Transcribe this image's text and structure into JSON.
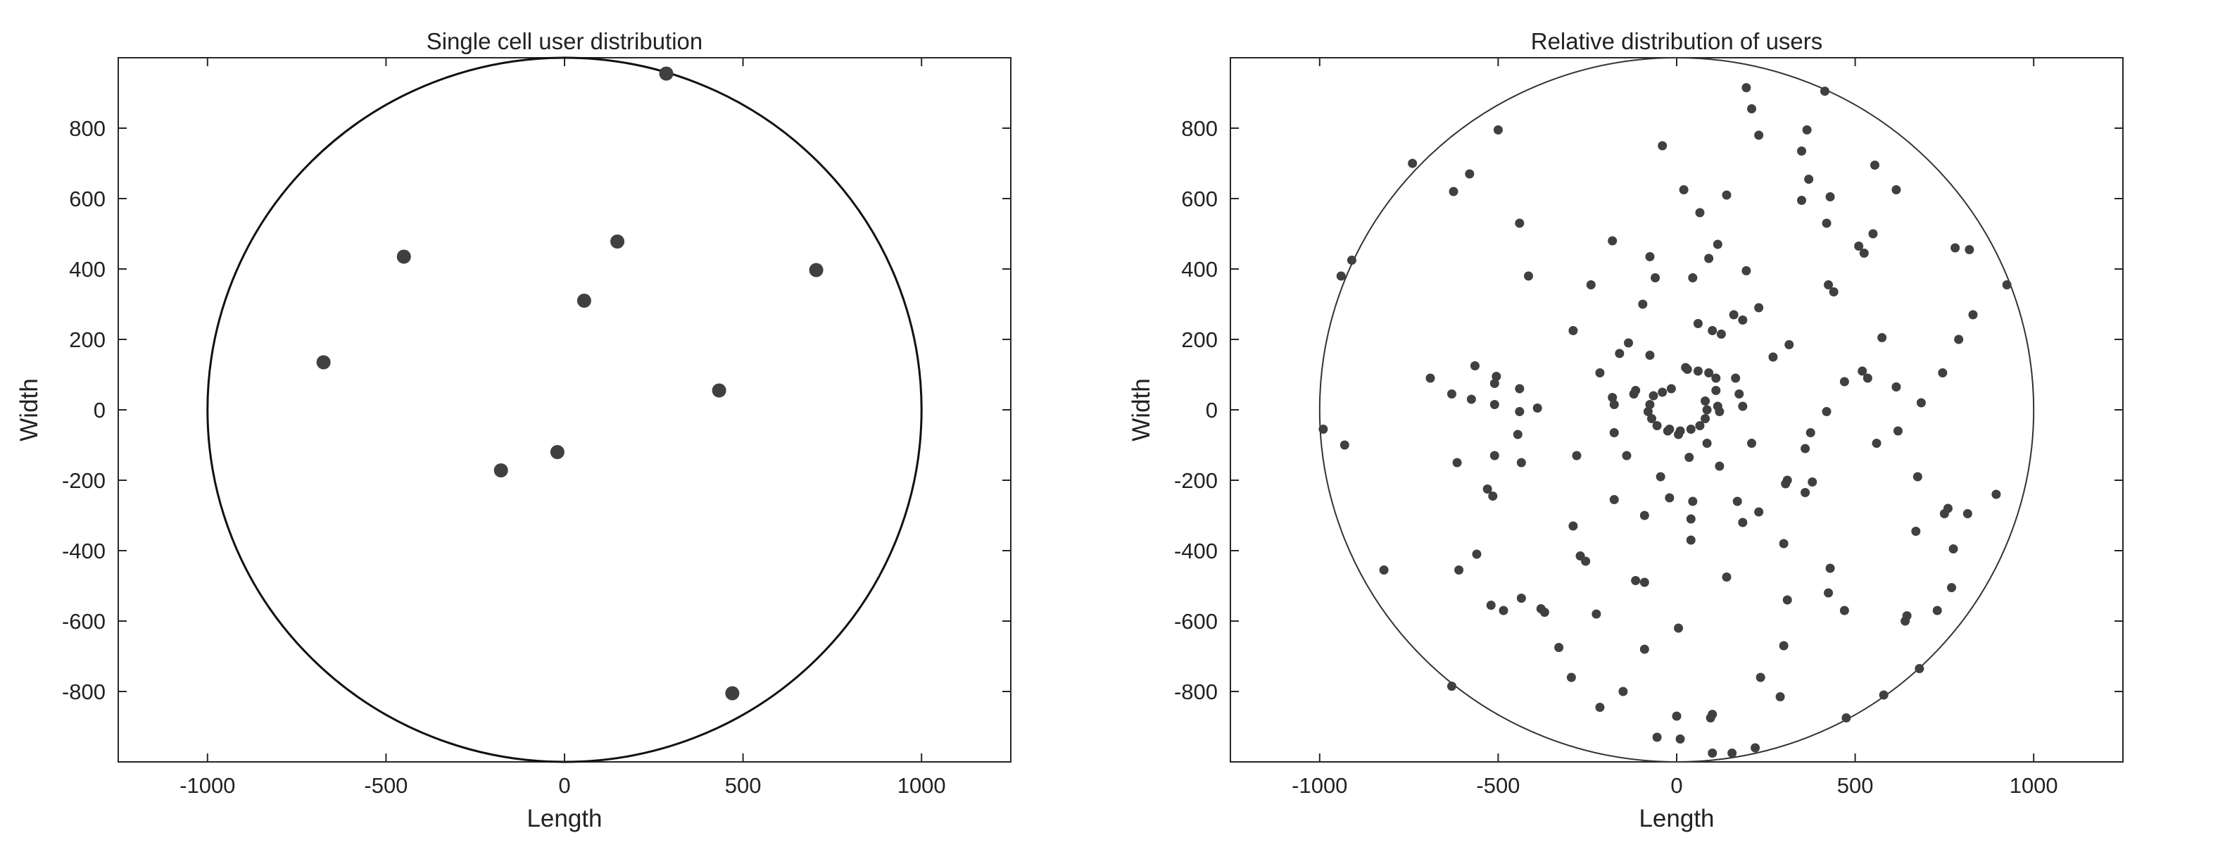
{
  "chart_data": [
    {
      "type": "scatter",
      "title": "Single cell user distribution",
      "xlabel": "Length",
      "ylabel": "Width",
      "xlim": [
        -1250,
        1250
      ],
      "ylim": [
        -1000,
        1000
      ],
      "xticks": [
        -1000,
        -500,
        0,
        500,
        1000
      ],
      "yticks": [
        800,
        600,
        400,
        200,
        0,
        -200,
        -400,
        -600,
        -800
      ],
      "circle": {
        "cx": 0,
        "cy": 0,
        "r": 1000
      },
      "grid": false,
      "marker_color": "#404040",
      "points": [
        {
          "x": 285,
          "y": 955
        },
        {
          "x": -450,
          "y": 435
        },
        {
          "x": 148,
          "y": 478
        },
        {
          "x": 705,
          "y": 397
        },
        {
          "x": 55,
          "y": 310
        },
        {
          "x": -675,
          "y": 135
        },
        {
          "x": 433,
          "y": 55
        },
        {
          "x": -178,
          "y": -172
        },
        {
          "x": -20,
          "y": -120
        },
        {
          "x": 470,
          "y": -805
        }
      ]
    },
    {
      "type": "scatter",
      "title": "Relative distribution of users",
      "xlabel": "Length",
      "ylabel": "Width",
      "xlim": [
        -1250,
        1250
      ],
      "ylim": [
        -1000,
        1000
      ],
      "xticks": [
        -1000,
        -500,
        0,
        500,
        1000
      ],
      "yticks": [
        800,
        600,
        400,
        200,
        0,
        -200,
        -400,
        -600,
        -800
      ],
      "circle": {
        "cx": 0,
        "cy": 0,
        "r": 1000
      },
      "grid": false,
      "marker_color": "#404040",
      "points": [
        {
          "x": 195,
          "y": 915
        },
        {
          "x": 415,
          "y": 905
        },
        {
          "x": 210,
          "y": 855
        },
        {
          "x": -740,
          "y": 700
        },
        {
          "x": -500,
          "y": 795
        },
        {
          "x": 230,
          "y": 780
        },
        {
          "x": 365,
          "y": 795
        },
        {
          "x": -40,
          "y": 750
        },
        {
          "x": -580,
          "y": 670
        },
        {
          "x": -625,
          "y": 620
        },
        {
          "x": 350,
          "y": 735
        },
        {
          "x": 555,
          "y": 695
        },
        {
          "x": 370,
          "y": 655
        },
        {
          "x": 615,
          "y": 625
        },
        {
          "x": 20,
          "y": 625
        },
        {
          "x": 140,
          "y": 610
        },
        {
          "x": 430,
          "y": 605
        },
        {
          "x": 350,
          "y": 595
        },
        {
          "x": 65,
          "y": 560
        },
        {
          "x": 420,
          "y": 530
        },
        {
          "x": -440,
          "y": 530
        },
        {
          "x": 550,
          "y": 500
        },
        {
          "x": 510,
          "y": 465
        },
        {
          "x": 525,
          "y": 445
        },
        {
          "x": -180,
          "y": 480
        },
        {
          "x": 115,
          "y": 470
        },
        {
          "x": 780,
          "y": 460
        },
        {
          "x": 820,
          "y": 455
        },
        {
          "x": -75,
          "y": 435
        },
        {
          "x": 90,
          "y": 430
        },
        {
          "x": 195,
          "y": 395
        },
        {
          "x": -910,
          "y": 425
        },
        {
          "x": -940,
          "y": 380
        },
        {
          "x": -415,
          "y": 380
        },
        {
          "x": -60,
          "y": 375
        },
        {
          "x": 45,
          "y": 375
        },
        {
          "x": 425,
          "y": 355
        },
        {
          "x": 440,
          "y": 335
        },
        {
          "x": -240,
          "y": 355
        },
        {
          "x": 925,
          "y": 355
        },
        {
          "x": -95,
          "y": 300
        },
        {
          "x": 230,
          "y": 290
        },
        {
          "x": 830,
          "y": 270
        },
        {
          "x": 160,
          "y": 270
        },
        {
          "x": 185,
          "y": 255
        },
        {
          "x": 60,
          "y": 245
        },
        {
          "x": 100,
          "y": 225
        },
        {
          "x": 125,
          "y": 215
        },
        {
          "x": -290,
          "y": 225
        },
        {
          "x": 315,
          "y": 185
        },
        {
          "x": 575,
          "y": 205
        },
        {
          "x": 790,
          "y": 200
        },
        {
          "x": -135,
          "y": 190
        },
        {
          "x": -75,
          "y": 155
        },
        {
          "x": -160,
          "y": 160
        },
        {
          "x": 270,
          "y": 150
        },
        {
          "x": 615,
          "y": 65
        },
        {
          "x": 745,
          "y": 105
        },
        {
          "x": 520,
          "y": 110
        },
        {
          "x": 535,
          "y": 90
        },
        {
          "x": 470,
          "y": 80
        },
        {
          "x": -565,
          "y": 125
        },
        {
          "x": -505,
          "y": 95
        },
        {
          "x": -510,
          "y": 75
        },
        {
          "x": -690,
          "y": 90
        },
        {
          "x": -630,
          "y": 45
        },
        {
          "x": -575,
          "y": 30
        },
        {
          "x": -440,
          "y": 60
        },
        {
          "x": -215,
          "y": 105
        },
        {
          "x": -180,
          "y": 35
        },
        {
          "x": -175,
          "y": 15
        },
        {
          "x": -115,
          "y": 55
        },
        {
          "x": -120,
          "y": 45
        },
        {
          "x": 110,
          "y": 55
        },
        {
          "x": 175,
          "y": 45
        },
        {
          "x": 185,
          "y": 10
        },
        {
          "x": 115,
          "y": 10
        },
        {
          "x": 120,
          "y": -5
        },
        {
          "x": 165,
          "y": 90
        },
        {
          "x": 420,
          "y": -5
        },
        {
          "x": 685,
          "y": 20
        },
        {
          "x": -390,
          "y": 5
        },
        {
          "x": -440,
          "y": -5
        },
        {
          "x": -510,
          "y": 15
        },
        {
          "x": -445,
          "y": -70
        },
        {
          "x": -615,
          "y": -150
        },
        {
          "x": -930,
          "y": -100
        },
        {
          "x": -990,
          "y": -55
        },
        {
          "x": -510,
          "y": -130
        },
        {
          "x": -435,
          "y": -150
        },
        {
          "x": -280,
          "y": -130
        },
        {
          "x": -140,
          "y": -130
        },
        {
          "x": -175,
          "y": -65
        },
        {
          "x": 85,
          "y": -95
        },
        {
          "x": 210,
          "y": -95
        },
        {
          "x": 360,
          "y": -110
        },
        {
          "x": 375,
          "y": -65
        },
        {
          "x": 620,
          "y": -60
        },
        {
          "x": 560,
          "y": -95
        },
        {
          "x": 35,
          "y": -135
        },
        {
          "x": 120,
          "y": -160
        },
        {
          "x": 305,
          "y": -210
        },
        {
          "x": 310,
          "y": -200
        },
        {
          "x": 360,
          "y": -235
        },
        {
          "x": 380,
          "y": -205
        },
        {
          "x": -530,
          "y": -225
        },
        {
          "x": -515,
          "y": -245
        },
        {
          "x": -175,
          "y": -255
        },
        {
          "x": -45,
          "y": -190
        },
        {
          "x": -20,
          "y": -250
        },
        {
          "x": 45,
          "y": -260
        },
        {
          "x": 170,
          "y": -260
        },
        {
          "x": 185,
          "y": -320
        },
        {
          "x": 230,
          "y": -290
        },
        {
          "x": 40,
          "y": -310
        },
        {
          "x": 40,
          "y": -370
        },
        {
          "x": -90,
          "y": -300
        },
        {
          "x": 675,
          "y": -190
        },
        {
          "x": 815,
          "y": -295
        },
        {
          "x": 895,
          "y": -240
        },
        {
          "x": 760,
          "y": -280
        },
        {
          "x": 750,
          "y": -295
        },
        {
          "x": 670,
          "y": -345
        },
        {
          "x": 775,
          "y": -395
        },
        {
          "x": 770,
          "y": -505
        },
        {
          "x": 730,
          "y": -570
        },
        {
          "x": 645,
          "y": -585
        },
        {
          "x": 640,
          "y": -600
        },
        {
          "x": 470,
          "y": -570
        },
        {
          "x": 425,
          "y": -520
        },
        {
          "x": 430,
          "y": -450
        },
        {
          "x": 300,
          "y": -380
        },
        {
          "x": -560,
          "y": -410
        },
        {
          "x": -610,
          "y": -455
        },
        {
          "x": -820,
          "y": -455
        },
        {
          "x": -290,
          "y": -330
        },
        {
          "x": -270,
          "y": -415
        },
        {
          "x": -255,
          "y": -430
        },
        {
          "x": -115,
          "y": -485
        },
        {
          "x": -90,
          "y": -490
        },
        {
          "x": 140,
          "y": -475
        },
        {
          "x": 310,
          "y": -540
        },
        {
          "x": -435,
          "y": -535
        },
        {
          "x": -380,
          "y": -565
        },
        {
          "x": -370,
          "y": -575
        },
        {
          "x": -520,
          "y": -555
        },
        {
          "x": -485,
          "y": -570
        },
        {
          "x": -225,
          "y": -580
        },
        {
          "x": 5,
          "y": -620
        },
        {
          "x": -90,
          "y": -680
        },
        {
          "x": -330,
          "y": -675
        },
        {
          "x": 300,
          "y": -670
        },
        {
          "x": 680,
          "y": -735
        },
        {
          "x": 580,
          "y": -810
        },
        {
          "x": 475,
          "y": -875
        },
        {
          "x": -295,
          "y": -760
        },
        {
          "x": -150,
          "y": -800
        },
        {
          "x": 235,
          "y": -760
        },
        {
          "x": 290,
          "y": -815
        },
        {
          "x": -630,
          "y": -785
        },
        {
          "x": -215,
          "y": -845
        },
        {
          "x": 95,
          "y": -875
        },
        {
          "x": 0,
          "y": -870
        },
        {
          "x": -55,
          "y": -930
        },
        {
          "x": 10,
          "y": -935
        },
        {
          "x": 100,
          "y": -975
        },
        {
          "x": 155,
          "y": -975
        },
        {
          "x": 220,
          "y": -960
        },
        {
          "x": 100,
          "y": -865
        },
        {
          "x": 25,
          "y": 120
        },
        {
          "x": 60,
          "y": 110
        },
        {
          "x": 90,
          "y": 105
        },
        {
          "x": 110,
          "y": 90
        },
        {
          "x": 30,
          "y": 115
        },
        {
          "x": -15,
          "y": 60
        },
        {
          "x": -40,
          "y": 50
        },
        {
          "x": -65,
          "y": 40
        },
        {
          "x": -75,
          "y": 15
        },
        {
          "x": -80,
          "y": -5
        },
        {
          "x": -70,
          "y": -25
        },
        {
          "x": -55,
          "y": -45
        },
        {
          "x": -25,
          "y": -60
        },
        {
          "x": 10,
          "y": -60
        },
        {
          "x": 40,
          "y": -55
        },
        {
          "x": 65,
          "y": -45
        },
        {
          "x": 80,
          "y": -25
        },
        {
          "x": 85,
          "y": 0
        },
        {
          "x": 80,
          "y": 25
        },
        {
          "x": -20,
          "y": -55
        },
        {
          "x": 5,
          "y": -70
        }
      ]
    }
  ]
}
